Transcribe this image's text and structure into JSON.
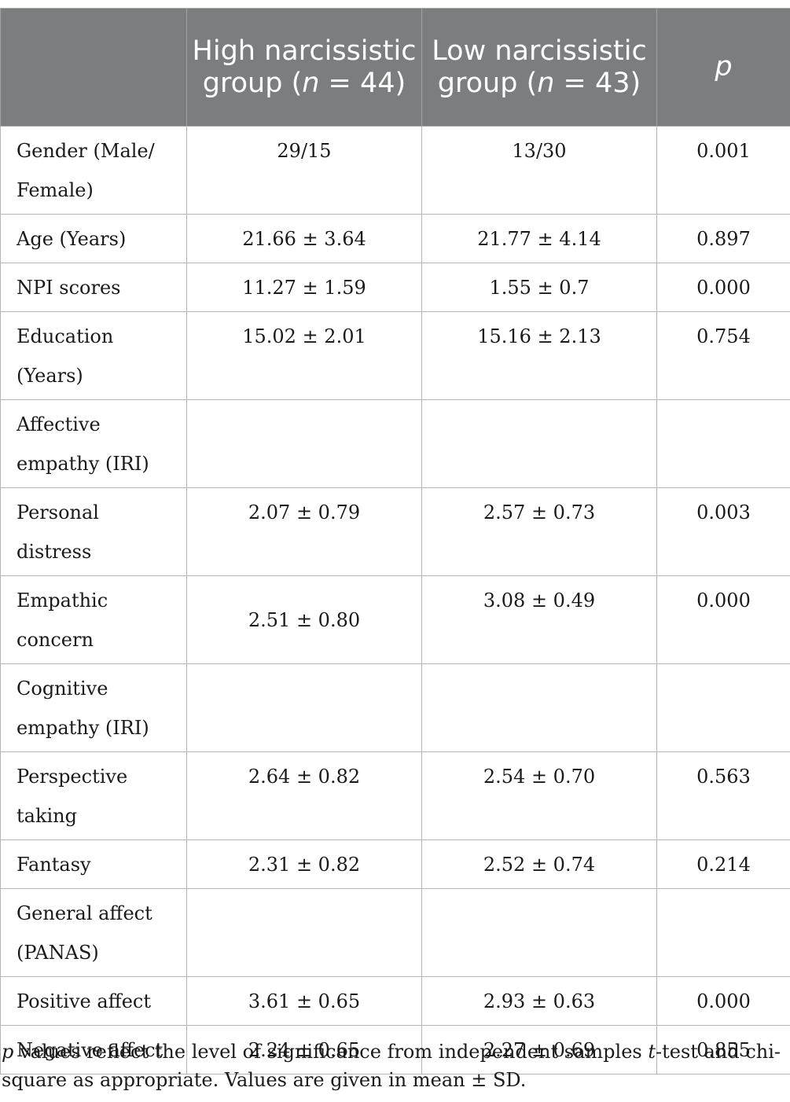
{
  "header": {
    "col1": "",
    "col2_prefix": "High narcissistic group (",
    "col2_n": "n",
    "col2_suffix": " = 44)",
    "col3_prefix": "Low narcissistic group (",
    "col3_n": "n",
    "col3_suffix": " = 43)",
    "col4": "p"
  },
  "rows": [
    {
      "label": "Gender (Male/ Female)",
      "high": "29/15",
      "low": "13/30",
      "p": "0.001"
    },
    {
      "label": "Age (Years)",
      "high": "21.66 ± 3.64",
      "low": "21.77 ± 4.14",
      "p": "0.897"
    },
    {
      "label": "NPI scores",
      "high": "11.27 ± 1.59",
      "low": "1.55 ± 0.7",
      "p": "0.000"
    },
    {
      "label": "Education (Years)",
      "high": "15.02 ± 2.01",
      "low": "15.16 ± 2.13",
      "p": "0.754"
    },
    {
      "label": "Affective empathy (IRI)",
      "high": "",
      "low": "",
      "p": ""
    },
    {
      "label": "Personal distress",
      "high": "2.07 ± 0.79",
      "low": "2.57 ± 0.73",
      "p": "0.003"
    },
    {
      "label": "Empathic concern",
      "high": "2.51 ± 0.80",
      "low": "3.08 ± 0.49",
      "p": "0.000"
    },
    {
      "label": "Cognitive empathy (IRI)",
      "high": "",
      "low": "",
      "p": ""
    },
    {
      "label": "Perspective taking",
      "high": "2.64 ± 0.82",
      "low": "2.54 ± 0.70",
      "p": "0.563"
    },
    {
      "label": "Fantasy",
      "high": "2.31 ± 0.82",
      "low": "2.52 ± 0.74",
      "p": "0.214"
    },
    {
      "label": "General affect (PANAS)",
      "high": "",
      "low": "",
      "p": ""
    },
    {
      "label": "Positive affect",
      "high": "3.61 ± 0.65",
      "low": "2.93 ± 0.63",
      "p": "0.000"
    },
    {
      "label": "Negative affect",
      "high": "2.24 ± 0.65",
      "low": "2.27 ± 0.69",
      "p": "0.855"
    }
  ],
  "footnote": {
    "p_symbol": "p",
    "part1": " values reflect the level of significance from independent samples ",
    "t_symbol": "t",
    "part2": "-test and chi-square as appropriate. Values are given in mean ± SD."
  }
}
